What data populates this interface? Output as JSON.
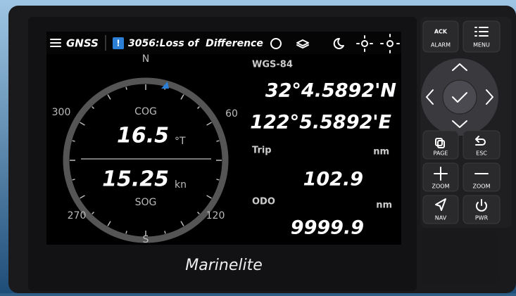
{
  "header": {
    "title": "GNSS",
    "alert_icon": "!",
    "alert": "3056:Loss of  Difference"
  },
  "compass": {
    "labels": {
      "north": "N",
      "e60": "60",
      "e120": "120",
      "south": "S",
      "w270": "270",
      "w300": "300"
    },
    "cog_label": "COG",
    "cog_value": "16.5",
    "cog_unit": "°T",
    "sog_value": "15.25",
    "sog_unit": "kn",
    "sog_label": "SOG"
  },
  "position": {
    "datum": "WGS-84",
    "lat": "32°4.5892'N",
    "lon": "122°5.5892'E"
  },
  "trip": {
    "label": "Trip",
    "unit": "nm",
    "value": "102.9"
  },
  "odo": {
    "label": "ODO",
    "unit": "nm",
    "value": "9999.9"
  },
  "buttons": {
    "ack": "ACK",
    "alarm": "ALARM",
    "menu": "MENU",
    "page": "PAGE",
    "esc": "ESC",
    "zoom_in": "ZOOM",
    "zoom_out": "ZOOM",
    "nav": "NAV",
    "pwr": "PWR"
  },
  "brand": "Marinelite"
}
